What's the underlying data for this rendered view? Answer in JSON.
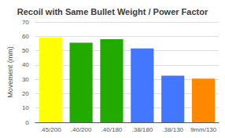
{
  "chart_data": {
    "type": "bar",
    "title": "Recoil with Same Bullet Weight / Power Factor",
    "ylabel": "Movement (mm)",
    "categories": [
      ".45/200",
      ".40/200",
      ".40/180",
      ".38/180",
      ".38/130",
      "9mm/130"
    ],
    "values": [
      59,
      55.5,
      58,
      51.5,
      32.5,
      30.5
    ],
    "colors": [
      "#FFFF00",
      "#22AA00",
      "#22AA00",
      "#4477FF",
      "#4477FF",
      "#FF8800"
    ],
    "ylim": [
      0,
      70
    ],
    "yticks": [
      0,
      10,
      20,
      30,
      40,
      50,
      60,
      70
    ],
    "grid": true
  }
}
